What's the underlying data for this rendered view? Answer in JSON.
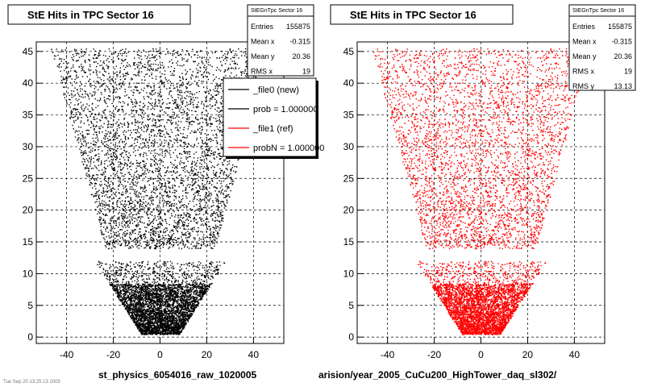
{
  "chart_data": [
    {
      "type": "scatter",
      "title": "StE Hits in TPC Sector 16",
      "xlabel": "st_physics_6054016_raw_1020005",
      "ylabel": "",
      "xlim": [
        -53,
        53
      ],
      "ylim": [
        -1,
        46.5
      ],
      "xticks": [
        "-40",
        "-20",
        "0",
        "20",
        "40"
      ],
      "yticks": [
        "0",
        "5",
        "10",
        "15",
        "20",
        "25",
        "30",
        "35",
        "40",
        "45"
      ],
      "grid": true,
      "marker_color": "#000000",
      "stats": {
        "name": "StEGnTpc Sector 16",
        "rows": [
          {
            "label": "Entries",
            "value": "155875"
          },
          {
            "label": "Mean x",
            "value": "-0.315"
          },
          {
            "label": "Mean y",
            "value": "20.36"
          },
          {
            "label": "RMS x",
            "value": "19"
          }
        ]
      },
      "legend": {
        "placement": "top-right",
        "entries": [
          {
            "label": "_file0 (new)",
            "color": "#000000"
          },
          {
            "label": "prob = 1.000000",
            "color": "#000000"
          },
          {
            "label": "_file1 (ref)",
            "color": "#ff0000"
          },
          {
            "label": "probN = 1.000000",
            "color": "#ff0000"
          }
        ]
      }
    },
    {
      "type": "scatter",
      "title": "StE Hits in TPC Sector 16",
      "xlabel": "arision/year_2005_CuCu200_HighTower_daq_sl302/",
      "ylabel": "",
      "xlim": [
        -53,
        53
      ],
      "ylim": [
        -1,
        46.5
      ],
      "xticks": [
        "-40",
        "-20",
        "0",
        "20",
        "40"
      ],
      "yticks": [
        "0",
        "5",
        "10",
        "15",
        "20",
        "25",
        "30",
        "35",
        "40",
        "45"
      ],
      "grid": true,
      "marker_color": "#ff0000",
      "stats": {
        "name": "StEGnTpc Sector 16",
        "rows": [
          {
            "label": "Entries",
            "value": "155875"
          },
          {
            "label": "Mean x",
            "value": "-0.315"
          },
          {
            "label": "Mean y",
            "value": "20.36"
          },
          {
            "label": "RMS x",
            "value": "19"
          },
          {
            "label": "RMS y",
            "value": "13.13"
          }
        ]
      }
    }
  ],
  "footer_stamp": "Tue Sep 20 13:25:13 2005"
}
